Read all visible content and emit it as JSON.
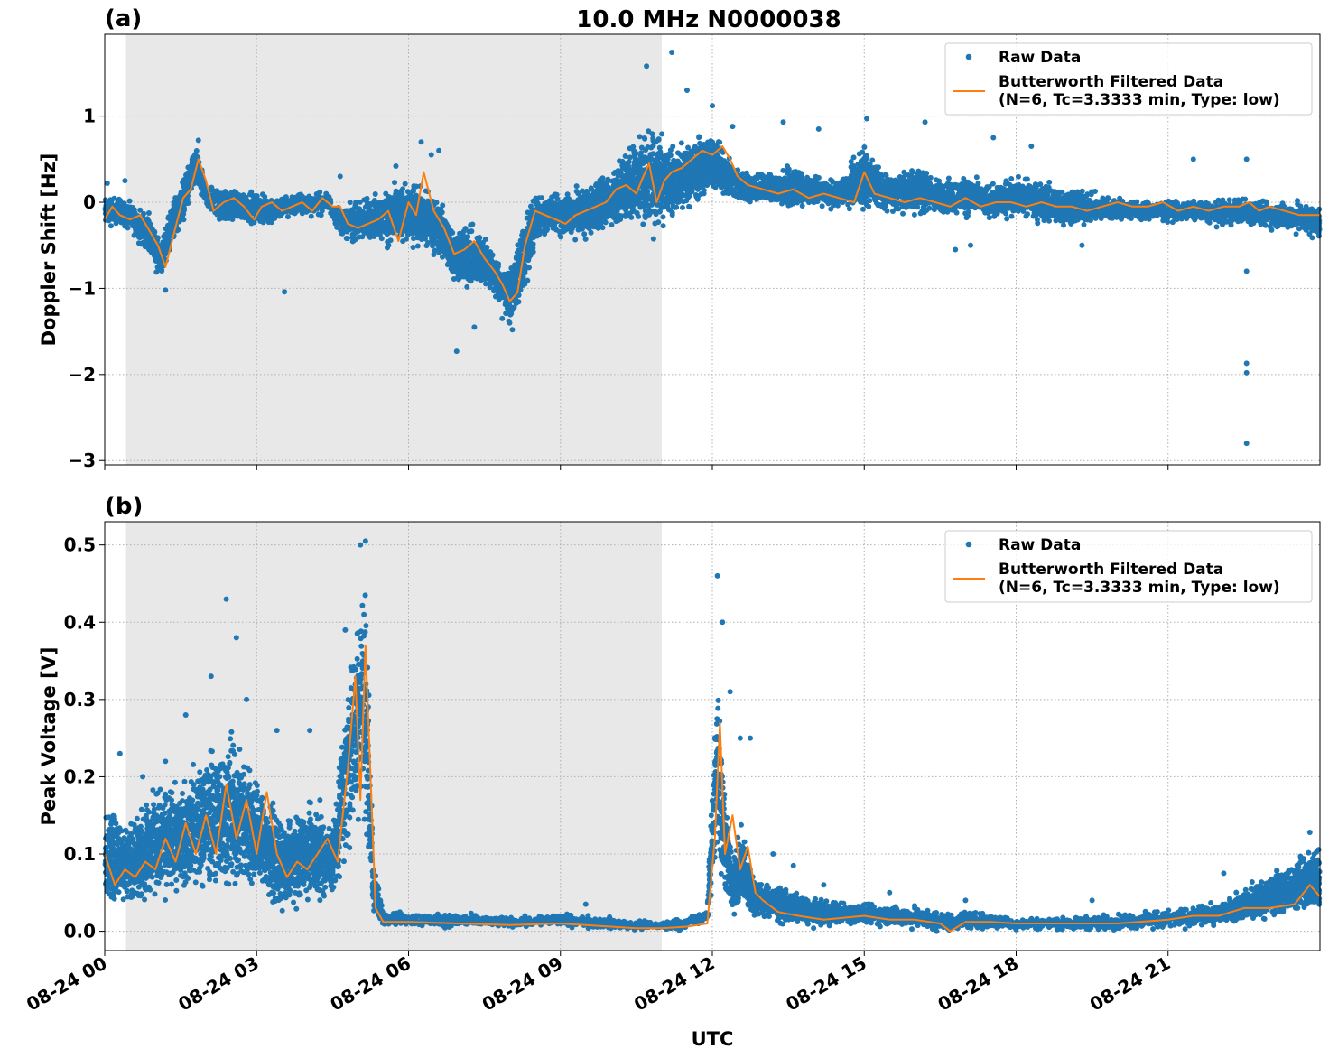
{
  "figure": {
    "title": "10.0 MHz N0000038",
    "xlabel": "UTC",
    "x_tick_labels": [
      "08-24 00",
      "08-24 03",
      "08-24 06",
      "08-24 09",
      "08-24 12",
      "08-24 15",
      "08-24 18",
      "08-24 21"
    ]
  },
  "colors": {
    "raw": "#1f77b4",
    "filtered": "#ff7f0e",
    "shade": "#e8e8e8",
    "grid": "#b0b0b0"
  },
  "legend": {
    "raw": "Raw Data",
    "filtered_line1": "Butterworth Filtered Data",
    "filtered_line2": "(N=6, Tc=3.3333 min, Type: low)"
  },
  "chart_data": [
    {
      "type": "scatter",
      "panel_label": "(a)",
      "title": "10.0 MHz N0000038",
      "xlabel": "",
      "ylabel": "Doppler Shift [Hz]",
      "x_unit": "hours UTC since 08-24 00:00",
      "xlim": [
        0,
        24
      ],
      "ylim": [
        -3.05,
        1.95
      ],
      "yticks": [
        -3,
        -2,
        -1,
        0,
        1
      ],
      "ytick_labels": [
        "−3",
        "−2",
        "−1",
        "0",
        "1"
      ],
      "grid": true,
      "legend_position": "top-right",
      "night_shading": [
        0.42,
        11.0
      ],
      "series": [
        {
          "name": "Raw Data",
          "kind": "scatter",
          "band_x": [
            0,
            0.3,
            0.6,
            0.9,
            1.1,
            1.3,
            1.5,
            1.8,
            2.0,
            2.3,
            2.6,
            3.0,
            3.3,
            3.7,
            4.0,
            4.4,
            4.7,
            5.0,
            5.4,
            5.7,
            6.0,
            6.3,
            6.6,
            6.9,
            7.2,
            7.5,
            7.8,
            8.0,
            8.2,
            8.5,
            8.8,
            9.2,
            9.6,
            10.0,
            10.4,
            10.8,
            11.0,
            11.3,
            11.7,
            12.0,
            12.3,
            12.6,
            13.0,
            13.5,
            14.0,
            14.5,
            15.0,
            15.5,
            16.0,
            16.5,
            17.0,
            17.5,
            18.0,
            18.5,
            19.0,
            19.5,
            20.0,
            20.5,
            21.0,
            21.5,
            22.0,
            22.5,
            23.0,
            23.5,
            24.0
          ],
          "band_low": [
            -0.35,
            -0.3,
            -0.45,
            -0.65,
            -1.0,
            -0.6,
            -0.35,
            0.1,
            -0.1,
            -0.3,
            -0.25,
            -0.3,
            -0.3,
            -0.2,
            -0.2,
            -0.15,
            -0.45,
            -0.55,
            -0.5,
            -0.6,
            -0.55,
            -0.6,
            -0.7,
            -1.0,
            -1.1,
            -1.05,
            -1.25,
            -1.45,
            -1.3,
            -0.55,
            -0.4,
            -0.5,
            -0.45,
            -0.35,
            -0.25,
            -0.5,
            -0.4,
            -0.2,
            -0.1,
            0.1,
            0.0,
            -0.05,
            -0.05,
            -0.1,
            -0.1,
            -0.1,
            -0.15,
            -0.15,
            -0.2,
            -0.2,
            -0.2,
            -0.25,
            -0.2,
            -0.3,
            -0.35,
            -0.3,
            -0.25,
            -0.25,
            -0.25,
            -0.25,
            -0.3,
            -0.3,
            -0.35,
            -0.4,
            -0.45
          ],
          "band_high": [
            0.15,
            0.1,
            0.0,
            -0.1,
            -0.45,
            0.05,
            0.3,
            0.7,
            0.25,
            0.2,
            0.2,
            0.15,
            0.1,
            0.15,
            0.15,
            0.15,
            -0.05,
            0.1,
            0.15,
            0.25,
            0.3,
            0.25,
            0.1,
            -0.2,
            -0.2,
            -0.3,
            -0.65,
            -0.75,
            -0.25,
            0.15,
            0.15,
            0.2,
            0.3,
            0.45,
            0.75,
            1.0,
            0.85,
            0.7,
            0.85,
            0.9,
            0.6,
            0.4,
            0.4,
            0.45,
            0.35,
            0.3,
            0.75,
            0.35,
            0.5,
            0.3,
            0.35,
            0.25,
            0.35,
            0.3,
            0.25,
            0.15,
            0.1,
            0.05,
            0.05,
            0.05,
            0.05,
            0.1,
            0.05,
            0.05,
            0.0
          ],
          "outliers": [
            [
              0.05,
              0.22
            ],
            [
              0.4,
              0.25
            ],
            [
              1.2,
              -1.02
            ],
            [
              1.85,
              0.72
            ],
            [
              3.55,
              -1.04
            ],
            [
              4.65,
              0.3
            ],
            [
              5.75,
              0.42
            ],
            [
              6.25,
              0.7
            ],
            [
              6.45,
              0.55
            ],
            [
              6.6,
              0.6
            ],
            [
              6.95,
              -1.73
            ],
            [
              7.3,
              -1.45
            ],
            [
              7.85,
              -1.35
            ],
            [
              8.05,
              -1.48
            ],
            [
              10.7,
              1.58
            ],
            [
              11.2,
              1.74
            ],
            [
              11.5,
              1.3
            ],
            [
              12.0,
              1.12
            ],
            [
              12.4,
              0.88
            ],
            [
              13.4,
              0.93
            ],
            [
              14.1,
              0.85
            ],
            [
              15.05,
              0.97
            ],
            [
              16.2,
              0.93
            ],
            [
              16.8,
              -0.55
            ],
            [
              17.1,
              -0.5
            ],
            [
              17.55,
              0.75
            ],
            [
              18.3,
              0.65
            ],
            [
              19.3,
              -0.5
            ],
            [
              21.5,
              0.5
            ],
            [
              22.55,
              0.5
            ],
            [
              22.55,
              -0.8
            ],
            [
              22.55,
              -1.87
            ],
            [
              22.55,
              -1.98
            ],
            [
              22.55,
              -2.8
            ]
          ]
        },
        {
          "name": "Butterworth Filtered Data",
          "kind": "line",
          "x": [
            0,
            0.15,
            0.3,
            0.5,
            0.7,
            0.9,
            1.05,
            1.2,
            1.35,
            1.55,
            1.7,
            1.85,
            2.0,
            2.15,
            2.35,
            2.55,
            2.75,
            2.95,
            3.1,
            3.3,
            3.5,
            3.7,
            3.9,
            4.1,
            4.3,
            4.5,
            4.65,
            4.8,
            5.0,
            5.2,
            5.4,
            5.6,
            5.8,
            6.0,
            6.15,
            6.3,
            6.5,
            6.7,
            6.9,
            7.1,
            7.3,
            7.5,
            7.7,
            7.85,
            8.0,
            8.15,
            8.3,
            8.5,
            8.7,
            8.9,
            9.1,
            9.3,
            9.5,
            9.7,
            9.9,
            10.1,
            10.3,
            10.5,
            10.6,
            10.75,
            10.9,
            11.05,
            11.2,
            11.4,
            11.6,
            11.8,
            12.0,
            12.2,
            12.35,
            12.5,
            12.7,
            13.0,
            13.3,
            13.6,
            13.9,
            14.2,
            14.5,
            14.8,
            15.0,
            15.2,
            15.5,
            15.8,
            16.1,
            16.4,
            16.7,
            17.0,
            17.3,
            17.6,
            17.9,
            18.2,
            18.5,
            18.8,
            19.1,
            19.4,
            19.7,
            20.0,
            20.3,
            20.6,
            20.9,
            21.2,
            21.5,
            21.8,
            22.1,
            22.4,
            22.6,
            22.8,
            23.0,
            23.3,
            23.6,
            24.0
          ],
          "y": [
            -0.2,
            -0.05,
            -0.15,
            -0.2,
            -0.15,
            -0.35,
            -0.5,
            -0.75,
            -0.4,
            0.05,
            0.15,
            0.5,
            0.25,
            -0.1,
            0.0,
            0.05,
            -0.05,
            -0.2,
            -0.05,
            0.0,
            -0.1,
            -0.05,
            0.0,
            -0.1,
            0.05,
            -0.05,
            -0.05,
            -0.25,
            -0.3,
            -0.25,
            -0.2,
            -0.1,
            -0.45,
            0.0,
            -0.15,
            0.35,
            -0.1,
            -0.3,
            -0.6,
            -0.55,
            -0.45,
            -0.65,
            -0.8,
            -0.95,
            -1.15,
            -1.05,
            -0.5,
            -0.1,
            -0.15,
            -0.2,
            -0.25,
            -0.15,
            -0.1,
            -0.05,
            0.0,
            0.15,
            0.2,
            0.1,
            0.25,
            0.45,
            0.0,
            0.25,
            0.35,
            0.4,
            0.5,
            0.6,
            0.55,
            0.65,
            0.5,
            0.3,
            0.2,
            0.15,
            0.1,
            0.15,
            0.05,
            0.1,
            0.05,
            0.0,
            0.35,
            0.1,
            0.05,
            0.0,
            0.05,
            0.0,
            -0.05,
            0.05,
            -0.05,
            0.0,
            0.0,
            -0.05,
            0.0,
            -0.05,
            -0.05,
            -0.1,
            -0.05,
            0.0,
            -0.05,
            -0.05,
            0.0,
            -0.1,
            -0.05,
            -0.1,
            -0.05,
            -0.05,
            0.0,
            -0.1,
            -0.05,
            -0.1,
            -0.15,
            -0.15
          ]
        }
      ]
    },
    {
      "type": "scatter",
      "panel_label": "(b)",
      "title": "",
      "xlabel": "UTC",
      "ylabel": "Peak Voltage [V]",
      "x_unit": "hours UTC since 08-24 00:00",
      "xlim": [
        0,
        24
      ],
      "ylim": [
        -0.025,
        0.53
      ],
      "yticks": [
        0.0,
        0.1,
        0.2,
        0.3,
        0.4,
        0.5
      ],
      "ytick_labels": [
        "0.0",
        "0.1",
        "0.2",
        "0.3",
        "0.4",
        "0.5"
      ],
      "grid": true,
      "legend_position": "top-right",
      "night_shading": [
        0.42,
        11.0
      ],
      "series": [
        {
          "name": "Raw Data",
          "kind": "scatter",
          "band_x": [
            0,
            0.5,
            1.0,
            1.5,
            2.0,
            2.5,
            3.0,
            3.5,
            4.0,
            4.5,
            4.8,
            5.0,
            5.15,
            5.3,
            5.5,
            6.0,
            7.0,
            8.0,
            9.0,
            10.0,
            10.5,
            11.0,
            11.5,
            11.9,
            12.1,
            12.25,
            12.4,
            12.6,
            12.8,
            13.0,
            13.5,
            14.0,
            15.0,
            16.0,
            16.5,
            16.8,
            17.0,
            18.0,
            19.0,
            20.0,
            21.0,
            22.0,
            22.5,
            23.0,
            23.5,
            24.0
          ],
          "band_low": [
            0.02,
            0.03,
            0.03,
            0.04,
            0.04,
            0.03,
            0.04,
            0.01,
            0.03,
            0.03,
            0.08,
            0.12,
            0.1,
            0.01,
            0.005,
            0.005,
            0.003,
            0.003,
            0.005,
            0.0,
            0.0,
            0.0,
            0.0,
            0.01,
            0.05,
            0.03,
            0.01,
            0.02,
            0.01,
            0.01,
            0.005,
            0.003,
            0.005,
            0.0,
            -0.002,
            -0.002,
            0.0,
            0.0,
            0.0,
            0.0,
            0.0,
            0.005,
            0.01,
            0.01,
            0.02,
            0.02
          ],
          "band_high": [
            0.18,
            0.15,
            0.2,
            0.2,
            0.25,
            0.28,
            0.22,
            0.15,
            0.18,
            0.15,
            0.35,
            0.45,
            0.5,
            0.1,
            0.03,
            0.025,
            0.025,
            0.02,
            0.025,
            0.02,
            0.015,
            0.015,
            0.02,
            0.03,
            0.4,
            0.2,
            0.1,
            0.15,
            0.08,
            0.07,
            0.06,
            0.045,
            0.04,
            0.035,
            0.03,
            0.025,
            0.03,
            0.02,
            0.02,
            0.025,
            0.03,
            0.04,
            0.06,
            0.08,
            0.1,
            0.12
          ],
          "outliers": [
            [
              0.3,
              0.23
            ],
            [
              0.75,
              0.2
            ],
            [
              1.2,
              0.22
            ],
            [
              1.6,
              0.28
            ],
            [
              2.1,
              0.33
            ],
            [
              2.4,
              0.43
            ],
            [
              2.6,
              0.38
            ],
            [
              2.8,
              0.3
            ],
            [
              3.4,
              0.26
            ],
            [
              4.05,
              0.26
            ],
            [
              4.25,
              0.17
            ],
            [
              4.75,
              0.39
            ],
            [
              5.05,
              0.5
            ],
            [
              5.15,
              0.505
            ],
            [
              9.5,
              0.035
            ],
            [
              12.1,
              0.46
            ],
            [
              12.2,
              0.4
            ],
            [
              12.35,
              0.31
            ],
            [
              12.55,
              0.25
            ],
            [
              12.75,
              0.25
            ],
            [
              13.2,
              0.1
            ],
            [
              13.6,
              0.085
            ],
            [
              14.2,
              0.06
            ],
            [
              15.5,
              0.05
            ],
            [
              17.0,
              0.04
            ],
            [
              19.5,
              0.04
            ],
            [
              22.1,
              0.075
            ],
            [
              23.8,
              0.128
            ]
          ]
        },
        {
          "name": "Butterworth Filtered Data",
          "kind": "line",
          "x": [
            0,
            0.2,
            0.4,
            0.6,
            0.8,
            1.0,
            1.2,
            1.4,
            1.6,
            1.8,
            2.0,
            2.2,
            2.4,
            2.6,
            2.8,
            3.0,
            3.2,
            3.4,
            3.6,
            3.8,
            4.0,
            4.2,
            4.4,
            4.6,
            4.8,
            4.95,
            5.05,
            5.15,
            5.25,
            5.35,
            5.5,
            6.0,
            7.0,
            8.0,
            9.0,
            10.0,
            10.5,
            11.0,
            11.5,
            11.9,
            12.05,
            12.15,
            12.25,
            12.4,
            12.55,
            12.7,
            12.85,
            13.0,
            13.3,
            13.7,
            14.2,
            15.0,
            15.5,
            16.0,
            16.5,
            16.7,
            17.0,
            17.5,
            18.0,
            19.0,
            20.0,
            21.0,
            21.5,
            22.0,
            22.5,
            23.0,
            23.5,
            23.8,
            24.0
          ],
          "y": [
            0.1,
            0.06,
            0.08,
            0.07,
            0.09,
            0.08,
            0.12,
            0.09,
            0.14,
            0.1,
            0.15,
            0.1,
            0.19,
            0.12,
            0.17,
            0.1,
            0.18,
            0.1,
            0.07,
            0.09,
            0.08,
            0.1,
            0.12,
            0.09,
            0.21,
            0.33,
            0.17,
            0.37,
            0.2,
            0.03,
            0.012,
            0.012,
            0.01,
            0.008,
            0.01,
            0.006,
            0.004,
            0.004,
            0.006,
            0.01,
            0.12,
            0.27,
            0.1,
            0.15,
            0.08,
            0.11,
            0.05,
            0.04,
            0.025,
            0.02,
            0.015,
            0.02,
            0.015,
            0.015,
            0.01,
            0.0,
            0.012,
            0.012,
            0.01,
            0.01,
            0.01,
            0.015,
            0.02,
            0.02,
            0.03,
            0.03,
            0.035,
            0.06,
            0.045
          ]
        }
      ]
    }
  ]
}
